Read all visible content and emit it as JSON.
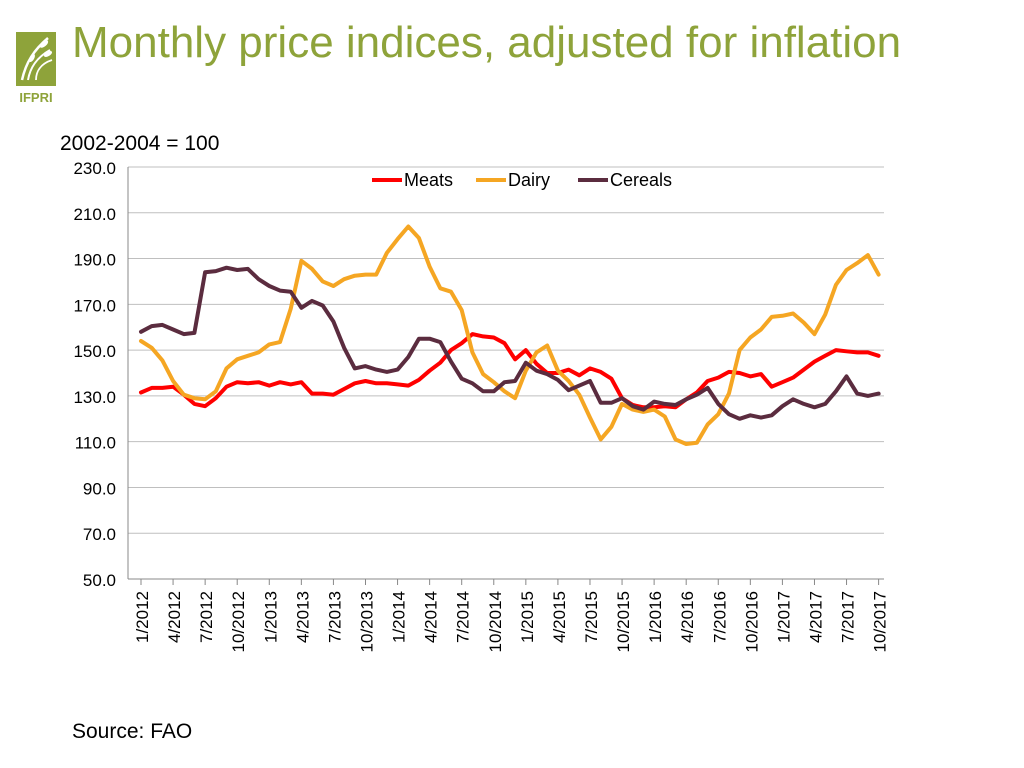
{
  "page": {
    "title": "Monthly price indices, adjusted for inflation",
    "subtitle": "2002-2004 = 100",
    "source": "Source: FAO",
    "logo_text": "IFPRI"
  },
  "colors": {
    "title": "#8ea33a",
    "logo": "#8ea33a",
    "meats": "#ff0000",
    "dairy": "#f5a623",
    "cereals": "#5b2c3f",
    "grid": "#bfbfbf"
  },
  "chart_data": {
    "type": "line",
    "title": "Monthly price indices, adjusted for inflation",
    "ylabel": "2002-2004 = 100",
    "ylim": [
      50,
      230
    ],
    "yticks": [
      "230.0",
      "210.0",
      "190.0",
      "170.0",
      "150.0",
      "130.0",
      "110.0",
      "90.0",
      "70.0",
      "50.0"
    ],
    "ytick_values": [
      230,
      210,
      190,
      170,
      150,
      130,
      110,
      90,
      70,
      50
    ],
    "x_range": [
      "1/2012",
      "12/2017"
    ],
    "x_tick_labels": [
      "1/2012",
      "4/2012",
      "7/2012",
      "10/2012",
      "1/2013",
      "4/2013",
      "7/2013",
      "10/2013",
      "1/2014",
      "4/2014",
      "7/2014",
      "10/2014",
      "1/2015",
      "4/2015",
      "7/2015",
      "10/2015",
      "1/2016",
      "4/2016",
      "7/2016",
      "10/2016",
      "1/2017",
      "4/2017",
      "7/2017",
      "10/2017"
    ],
    "legend_position": "top-center",
    "grid": true,
    "series": [
      {
        "name": "Meats",
        "values": [
          131.5,
          133.5,
          133.5,
          134,
          130.5,
          126.5,
          125.5,
          129,
          134,
          136,
          135.5,
          136,
          134.5,
          136,
          135,
          136,
          131,
          131,
          130.5,
          133,
          135.5,
          136.5,
          135.5,
          135.5,
          135,
          134.5,
          137,
          141,
          144.5,
          150,
          153,
          157,
          156,
          155.5,
          153,
          146,
          150,
          144,
          140,
          140,
          141.5,
          139,
          142,
          140.5,
          137.5,
          129,
          126,
          125,
          125,
          125.5,
          125,
          128.5,
          131.5,
          136.5,
          138,
          140.5,
          140,
          138.5,
          139.5,
          134,
          136,
          138,
          141.5,
          145,
          147.5,
          150,
          149.5,
          149,
          149,
          147.5
        ]
      },
      {
        "name": "Dairy",
        "values": [
          154,
          151,
          145.5,
          136.5,
          130.5,
          129,
          128.5,
          132,
          142,
          146,
          147.5,
          149,
          152.5,
          153.5,
          168,
          189,
          185.5,
          180,
          178,
          181,
          182.5,
          183,
          183,
          192.5,
          198.5,
          204,
          199,
          186.5,
          177,
          175.5,
          167.5,
          149,
          139.5,
          136,
          132,
          129,
          141,
          149,
          152,
          141,
          136.5,
          130.5,
          120.5,
          111,
          116.5,
          126.5,
          124,
          123,
          124,
          121,
          111,
          109,
          109.5,
          117.5,
          122,
          131,
          150,
          155.5,
          159,
          164.5,
          165,
          166,
          162,
          157,
          165.5,
          178.5,
          185,
          188,
          191.5,
          183
        ]
      },
      {
        "name": "Cereals",
        "values": [
          158,
          160.5,
          161,
          159,
          157,
          157.5,
          184,
          184.5,
          186,
          185,
          185.5,
          181,
          178,
          176,
          175.5,
          168.5,
          171.5,
          169.5,
          162.5,
          151,
          142,
          143,
          141.5,
          140.5,
          141.5,
          147,
          155,
          155,
          153.5,
          145,
          137.5,
          135.5,
          132,
          132,
          136,
          136.5,
          144.5,
          141,
          139.5,
          137,
          132.5,
          134.5,
          136.5,
          127,
          127,
          129,
          125.5,
          124,
          127.5,
          126.5,
          126,
          128.5,
          130.5,
          133.5,
          126.5,
          122,
          120,
          121.5,
          120.5,
          121.5,
          125.5,
          128.5,
          126.5,
          125,
          126.5,
          132,
          138.5,
          131,
          130,
          131
        ]
      }
    ]
  }
}
